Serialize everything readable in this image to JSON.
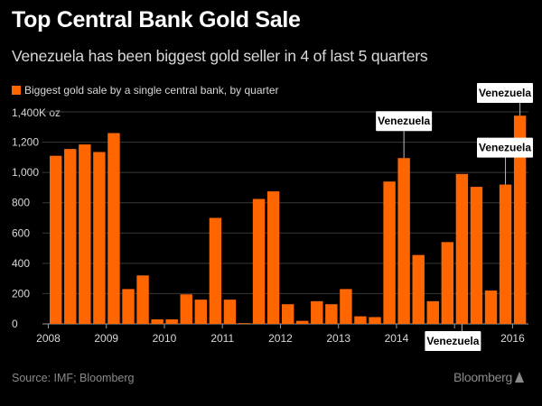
{
  "header": {
    "title": "Top Central Bank Gold Sale",
    "subtitle": "Venezuela has been biggest gold seller in 4 of last 5 quarters"
  },
  "legend": {
    "label": "Biggest gold sale by a single central bank, by quarter"
  },
  "footer": {
    "source": "Source: IMF; Bloomberg",
    "brand": "Bloomberg"
  },
  "colors": {
    "background": "#000000",
    "bar": "#ff6600",
    "grid": "#3a3a3a",
    "text": "#d8d8d8",
    "callout_bg": "#ffffff",
    "callout_text": "#000000"
  },
  "chart_data": {
    "type": "bar",
    "unit_label": "1,400K oz",
    "ylim": [
      0,
      1400
    ],
    "yticks": [
      0,
      200,
      400,
      600,
      800,
      1000,
      1200,
      1400
    ],
    "ytick_labels": [
      "0",
      "200",
      "400",
      "600",
      "800",
      "1,000",
      "1,200",
      "1,400K oz"
    ],
    "xtick_labels": [
      "2008",
      "2009",
      "2010",
      "2011",
      "2012",
      "2013",
      "2014",
      "2015",
      "2016"
    ],
    "grid": true,
    "values": [
      1110,
      1155,
      1185,
      1135,
      1260,
      230,
      320,
      30,
      30,
      195,
      160,
      700,
      160,
      5,
      825,
      875,
      130,
      20,
      150,
      130,
      230,
      50,
      45,
      940,
      1095,
      455,
      150,
      540,
      990,
      905,
      220,
      920,
      1375
    ],
    "annotations": [
      {
        "label": "Venezuela",
        "bar": 24
      },
      {
        "label": "Venezuela",
        "bar": 28
      },
      {
        "label": "Venezuela",
        "bar": 31
      },
      {
        "label": "Venezuela",
        "bar": 32
      }
    ]
  }
}
